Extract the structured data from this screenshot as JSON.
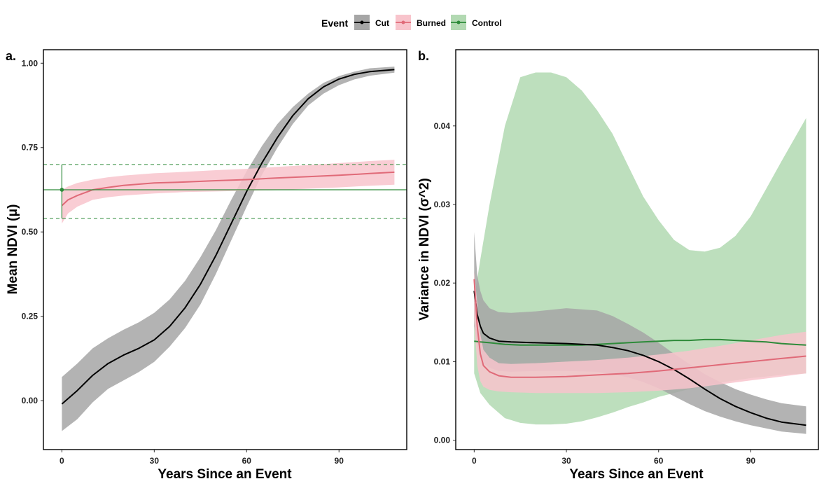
{
  "legend": {
    "title": "Event",
    "items": [
      {
        "label": "Cut",
        "line": "#000000",
        "fill": "#a6a6a6"
      },
      {
        "label": "Burned",
        "line": "#e06a78",
        "fill": "#f8c4cc"
      },
      {
        "label": "Control",
        "line": "#2e8b3a",
        "fill": "#b2d9b2"
      }
    ]
  },
  "chart_data": [
    {
      "panel": "a.",
      "type": "line",
      "xlabel": "Years Since an Event",
      "ylabel": "Mean NDVI (μ)",
      "xlim": [
        -6,
        112
      ],
      "ylim": [
        -0.145,
        1.04
      ],
      "xticks": [
        0,
        30,
        60,
        90
      ],
      "xtick_labels": [
        "0",
        "30",
        "60",
        "90"
      ],
      "yticks": [
        0.0,
        0.25,
        0.5,
        0.75,
        1.0
      ],
      "ytick_labels": [
        "0.00",
        "0.25",
        "0.50",
        "0.75",
        "1.00"
      ],
      "series": [
        {
          "name": "Cut",
          "color": "#000000",
          "band_color": "#a6a6a6",
          "x": [
            0,
            5,
            10,
            15,
            20,
            25,
            30,
            35,
            40,
            45,
            50,
            55,
            60,
            65,
            70,
            75,
            80,
            85,
            90,
            95,
            100,
            108
          ],
          "y": [
            -0.01,
            0.03,
            0.075,
            0.11,
            0.135,
            0.155,
            0.18,
            0.22,
            0.275,
            0.345,
            0.43,
            0.525,
            0.62,
            0.705,
            0.78,
            0.845,
            0.895,
            0.93,
            0.953,
            0.967,
            0.975,
            0.981
          ],
          "lower": [
            -0.09,
            -0.055,
            -0.005,
            0.035,
            0.06,
            0.085,
            0.115,
            0.16,
            0.215,
            0.285,
            0.375,
            0.475,
            0.575,
            0.67,
            0.75,
            0.82,
            0.875,
            0.91,
            0.935,
            0.952,
            0.963,
            0.972
          ],
          "upper": [
            0.07,
            0.11,
            0.155,
            0.185,
            0.21,
            0.232,
            0.26,
            0.3,
            0.355,
            0.425,
            0.505,
            0.595,
            0.68,
            0.755,
            0.82,
            0.87,
            0.91,
            0.942,
            0.962,
            0.975,
            0.985,
            0.99
          ]
        },
        {
          "name": "Burned",
          "color": "#e06a78",
          "band_color": "#f8c4cc",
          "x": [
            0,
            2,
            5,
            10,
            15,
            20,
            30,
            40,
            50,
            60,
            70,
            80,
            90,
            100,
            108
          ],
          "y": [
            0.578,
            0.595,
            0.608,
            0.625,
            0.632,
            0.638,
            0.645,
            0.648,
            0.652,
            0.655,
            0.66,
            0.664,
            0.668,
            0.673,
            0.677
          ],
          "lower": [
            0.525,
            0.555,
            0.575,
            0.595,
            0.603,
            0.608,
            0.614,
            0.618,
            0.62,
            0.622,
            0.624,
            0.628,
            0.632,
            0.637,
            0.64
          ],
          "upper": [
            0.625,
            0.635,
            0.645,
            0.655,
            0.662,
            0.667,
            0.674,
            0.678,
            0.683,
            0.687,
            0.693,
            0.698,
            0.704,
            0.71,
            0.714
          ]
        },
        {
          "name": "Control",
          "color": "#2e8b3a",
          "point": {
            "x": 0,
            "y": 0.625,
            "lower": 0.54,
            "upper": 0.7
          },
          "hline": 0.625,
          "hline_lower": 0.54,
          "hline_upper": 0.7
        }
      ]
    },
    {
      "panel": "b.",
      "type": "line",
      "xlabel": "Years Since an Event",
      "ylabel": "Variance in NDVI (σ^2)",
      "xlim": [
        -6,
        112
      ],
      "ylim": [
        -0.0012,
        0.0497
      ],
      "xticks": [
        0,
        30,
        60,
        90
      ],
      "xtick_labels": [
        "0",
        "30",
        "60",
        "90"
      ],
      "yticks": [
        0.0,
        0.01,
        0.02,
        0.03,
        0.04
      ],
      "ytick_labels": [
        "0.00",
        "0.01",
        "0.02",
        "0.03",
        "0.04"
      ],
      "series": [
        {
          "name": "Control",
          "color": "#2e8b3a",
          "band_color": "#b2d9b2",
          "x": [
            0,
            2,
            5,
            10,
            15,
            20,
            25,
            30,
            35,
            40,
            45,
            50,
            55,
            60,
            65,
            70,
            75,
            80,
            85,
            90,
            95,
            100,
            108
          ],
          "y": [
            0.0126,
            0.0125,
            0.0124,
            0.0122,
            0.0121,
            0.0121,
            0.0121,
            0.0121,
            0.0121,
            0.0122,
            0.0123,
            0.0124,
            0.0125,
            0.0126,
            0.0127,
            0.0127,
            0.0128,
            0.0128,
            0.0127,
            0.0126,
            0.0125,
            0.0123,
            0.0121
          ],
          "lower": [
            0.0085,
            0.006,
            0.0045,
            0.0028,
            0.0022,
            0.002,
            0.002,
            0.0021,
            0.0024,
            0.0029,
            0.0035,
            0.0042,
            0.0048,
            0.0055,
            0.006,
            0.0065,
            0.0069,
            0.0073,
            0.0076,
            0.0079,
            0.0081,
            0.0083,
            0.0085
          ],
          "upper": [
            0.018,
            0.023,
            0.03,
            0.04,
            0.0462,
            0.0468,
            0.0468,
            0.0462,
            0.0445,
            0.042,
            0.039,
            0.035,
            0.031,
            0.028,
            0.0255,
            0.0242,
            0.024,
            0.0245,
            0.026,
            0.0285,
            0.032,
            0.0355,
            0.041
          ]
        },
        {
          "name": "Cut",
          "color": "#000000",
          "band_color": "#a6a6a6",
          "x": [
            0,
            1,
            2,
            3,
            5,
            8,
            12,
            20,
            30,
            40,
            45,
            50,
            55,
            60,
            65,
            70,
            75,
            80,
            85,
            90,
            95,
            100,
            108
          ],
          "y": [
            0.019,
            0.016,
            0.0145,
            0.0136,
            0.013,
            0.0126,
            0.0125,
            0.0124,
            0.0123,
            0.0121,
            0.0118,
            0.0114,
            0.0108,
            0.01,
            0.009,
            0.0078,
            0.0065,
            0.0053,
            0.0043,
            0.0035,
            0.0028,
            0.0023,
            0.0019
          ],
          "lower": [
            0.0145,
            0.012,
            0.0105,
            0.0098,
            0.0092,
            0.0088,
            0.0087,
            0.0088,
            0.0088,
            0.0087,
            0.0084,
            0.008,
            0.0074,
            0.0066,
            0.0056,
            0.0046,
            0.0037,
            0.003,
            0.0024,
            0.0019,
            0.0015,
            0.0011,
            0.0008
          ],
          "upper": [
            0.0265,
            0.021,
            0.019,
            0.0178,
            0.0168,
            0.0163,
            0.0162,
            0.0164,
            0.0168,
            0.0165,
            0.0158,
            0.0148,
            0.0137,
            0.0124,
            0.011,
            0.0097,
            0.0084,
            0.0074,
            0.0065,
            0.0058,
            0.0052,
            0.0047,
            0.0043
          ]
        },
        {
          "name": "Burned",
          "color": "#e06a78",
          "band_color": "#f8c4cc",
          "x": [
            0,
            1,
            2,
            3,
            5,
            8,
            12,
            20,
            30,
            40,
            50,
            60,
            70,
            80,
            90,
            100,
            108
          ],
          "y": [
            0.0205,
            0.0145,
            0.011,
            0.0095,
            0.0087,
            0.0082,
            0.008,
            0.008,
            0.0081,
            0.0083,
            0.0085,
            0.0088,
            0.0092,
            0.0096,
            0.01,
            0.0104,
            0.0107
          ],
          "lower": [
            0.0155,
            0.0095,
            0.0075,
            0.0068,
            0.0064,
            0.0062,
            0.0061,
            0.006,
            0.006,
            0.006,
            0.0061,
            0.0063,
            0.0066,
            0.0071,
            0.0076,
            0.0081,
            0.0085
          ],
          "upper": [
            0.0215,
            0.0175,
            0.0135,
            0.0115,
            0.0105,
            0.0098,
            0.0097,
            0.0098,
            0.01,
            0.0102,
            0.0105,
            0.0109,
            0.0114,
            0.012,
            0.0127,
            0.0134,
            0.0138
          ]
        }
      ]
    }
  ]
}
